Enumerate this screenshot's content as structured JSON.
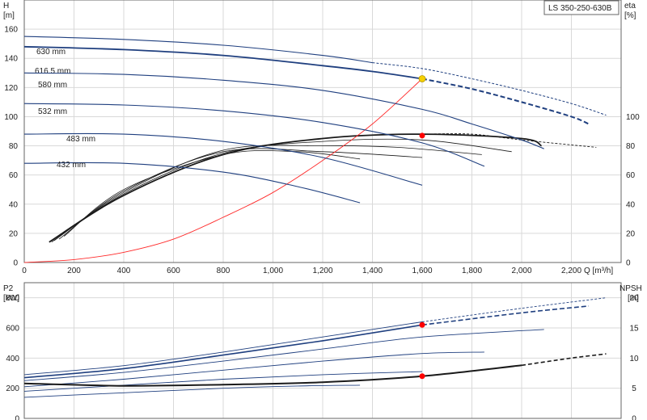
{
  "chart_data": {
    "title": "LS 350-250-630B",
    "type": "line",
    "colors": {
      "head": "#1f3f7f",
      "eff": "#1a1a1a",
      "system": "#ff2a2a",
      "duty_point": "#f5d000",
      "marker": "#ff0000"
    },
    "top_chart": {
      "x_axis": {
        "label": "Q [m³/h]",
        "range": [
          0,
          2400
        ],
        "ticks": [
          "0",
          "200",
          "400",
          "600",
          "800",
          "1,000",
          "1,200",
          "1,400",
          "1,600",
          "1,800",
          "2,000",
          "2,200"
        ]
      },
      "y_left": {
        "label_1": "H",
        "label_2": "[m]",
        "range": [
          0,
          180
        ],
        "ticks": [
          0,
          20,
          40,
          60,
          80,
          100,
          120,
          140,
          160
        ]
      },
      "y_right": {
        "label_1": "eta",
        "label_2": "[%]",
        "range": [
          0,
          180
        ],
        "ticks": [
          0,
          20,
          40,
          60,
          80,
          100
        ]
      },
      "head_curves": [
        {
          "name": "630 mm",
          "points": [
            [
              0,
              155
            ],
            [
              400,
              153
            ],
            [
              800,
              149
            ],
            [
              1200,
              142
            ],
            [
              1400,
              137
            ]
          ],
          "dashed_points": [
            [
              1400,
              137
            ],
            [
              1600,
              133
            ],
            [
              1800,
              126
            ],
            [
              2000,
              118
            ],
            [
              2200,
              109
            ],
            [
              2340,
              101
            ]
          ]
        },
        {
          "name": "616.5 mm",
          "points": [
            [
              0,
              148
            ],
            [
              400,
              146
            ],
            [
              800,
              142
            ],
            [
              1200,
              135
            ],
            [
              1400,
              131
            ],
            [
              1600,
              126
            ]
          ],
          "dashed_points": [
            [
              1600,
              126
            ],
            [
              1800,
              119
            ],
            [
              2000,
              110
            ],
            [
              2200,
              100
            ],
            [
              2270,
              95
            ]
          ]
        },
        {
          "name": "580 mm",
          "points": [
            [
              0,
              130
            ],
            [
              400,
              129
            ],
            [
              800,
              125
            ],
            [
              1200,
              118
            ],
            [
              1600,
              105
            ],
            [
              1800,
              95
            ],
            [
              2000,
              84
            ],
            [
              2090,
              78
            ]
          ],
          "dashed_points": []
        },
        {
          "name": "532 mm",
          "points": [
            [
              0,
              109
            ],
            [
              400,
              108
            ],
            [
              800,
              104
            ],
            [
              1200,
              96
            ],
            [
              1600,
              82
            ],
            [
              1850,
              66
            ]
          ],
          "dashed_points": []
        },
        {
          "name": "483 mm",
          "points": [
            [
              0,
              88
            ],
            [
              400,
              88
            ],
            [
              800,
              83
            ],
            [
              1200,
              72
            ],
            [
              1600,
              53
            ]
          ],
          "dashed_points": []
        },
        {
          "name": "432 mm",
          "points": [
            [
              0,
              68
            ],
            [
              400,
              68
            ],
            [
              800,
              62
            ],
            [
              1100,
              52
            ],
            [
              1350,
              41
            ]
          ],
          "dashed_points": []
        }
      ],
      "eff_curves": [
        {
          "points": [
            [
              100,
              14
            ],
            [
              400,
              46
            ],
            [
              800,
              74
            ],
            [
              1200,
              85
            ],
            [
              1600,
              88
            ],
            [
              2000,
              85
            ],
            [
              2080,
              80
            ]
          ],
          "dashed_points": [
            [
              1600,
              88
            ],
            [
              1800,
              88
            ],
            [
              2000,
              84
            ],
            [
              2300,
              79
            ]
          ]
        },
        {
          "points": [
            [
              110,
              14
            ],
            [
              400,
              47
            ],
            [
              800,
              75
            ],
            [
              1200,
              83
            ],
            [
              1600,
              84
            ],
            [
              1960,
              76
            ]
          ],
          "dashed_points": []
        },
        {
          "points": [
            [
              120,
              15
            ],
            [
              400,
              48
            ],
            [
              800,
              77
            ],
            [
              1200,
              80
            ],
            [
              1500,
              79
            ],
            [
              1840,
              74
            ]
          ],
          "dashed_points": []
        },
        {
          "points": [
            [
              140,
              16
            ],
            [
              400,
              49
            ],
            [
              800,
              76
            ],
            [
              1200,
              76
            ],
            [
              1600,
              72
            ]
          ],
          "dashed_points": []
        },
        {
          "points": [
            [
              160,
              18
            ],
            [
              400,
              50
            ],
            [
              800,
              74
            ],
            [
              1100,
              76
            ],
            [
              1350,
              71
            ]
          ],
          "dashed_points": []
        }
      ],
      "system_curve": [
        [
          0,
          0
        ],
        [
          200,
          2
        ],
        [
          400,
          7
        ],
        [
          600,
          16
        ],
        [
          800,
          31
        ],
        [
          1000,
          48
        ],
        [
          1200,
          70
        ],
        [
          1400,
          95
        ],
        [
          1600,
          126
        ]
      ],
      "duty_point": [
        1600,
        126
      ],
      "eff_point": [
        1600,
        87
      ]
    },
    "bottom_chart": {
      "x_range": [
        0,
        2400
      ],
      "y_left": {
        "label_1": "P2",
        "label_2": "[kW]",
        "range": [
          0,
          900
        ],
        "ticks": [
          0,
          200,
          400,
          600,
          800
        ]
      },
      "y_right": {
        "label_1": "NPSH",
        "label_2": "[m]",
        "range": [
          0,
          22.5
        ],
        "ticks": [
          0,
          5,
          10,
          15,
          20
        ]
      },
      "power_curves": [
        {
          "points": [
            [
              0,
              290
            ],
            [
              400,
              350
            ],
            [
              800,
              440
            ],
            [
              1200,
              540
            ],
            [
              1600,
              640
            ]
          ],
          "dashed_points": [
            [
              1600,
              640
            ],
            [
              2000,
              730
            ],
            [
              2340,
              800
            ]
          ]
        },
        {
          "points": [
            [
              0,
              270
            ],
            [
              400,
              330
            ],
            [
              800,
              420
            ],
            [
              1200,
              515
            ],
            [
              1600,
              620
            ]
          ],
          "dashed_points": [
            [
              1600,
              620
            ],
            [
              2000,
              700
            ],
            [
              2270,
              745
            ]
          ]
        },
        {
          "points": [
            [
              0,
              250
            ],
            [
              400,
              305
            ],
            [
              800,
              380
            ],
            [
              1200,
              460
            ],
            [
              1600,
              540
            ],
            [
              2090,
              590
            ]
          ],
          "dashed_points": []
        },
        {
          "points": [
            [
              0,
              210
            ],
            [
              400,
              260
            ],
            [
              800,
              320
            ],
            [
              1200,
              380
            ],
            [
              1600,
              430
            ],
            [
              1850,
              440
            ]
          ],
          "dashed_points": []
        },
        {
          "points": [
            [
              0,
              180
            ],
            [
              400,
              220
            ],
            [
              800,
              260
            ],
            [
              1200,
              290
            ],
            [
              1600,
              310
            ]
          ],
          "dashed_points": []
        },
        {
          "points": [
            [
              0,
              140
            ],
            [
              400,
              170
            ],
            [
              800,
              200
            ],
            [
              1100,
              215
            ],
            [
              1350,
              220
            ]
          ],
          "dashed_points": []
        }
      ],
      "npsh_curve": {
        "points": [
          [
            0,
            5.8
          ],
          [
            400,
            5.4
          ],
          [
            800,
            5.6
          ],
          [
            1200,
            6.0
          ],
          [
            1600,
            7.0
          ],
          [
            2000,
            8.8
          ]
        ],
        "dashed_points": [
          [
            2000,
            8.8
          ],
          [
            2200,
            10.0
          ],
          [
            2340,
            10.7
          ]
        ]
      },
      "npsh_point": [
        1600,
        7.0
      ],
      "power_point": [
        1600,
        620
      ]
    }
  },
  "labels": {
    "q_axis": "Q [m³/h]"
  }
}
